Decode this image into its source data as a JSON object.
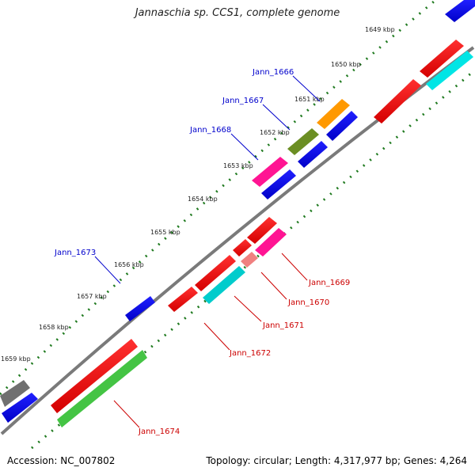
{
  "header": {
    "title": "Jannaschia sp. CCS1, complete genome"
  },
  "footer": {
    "accession": "Accession: NC_007802",
    "summary": "Topology: circular; Length: 4,317,977 bp; Genes: 4,264"
  },
  "colors": {
    "backbone": "#7a7a7a",
    "tick": "#1f7a1f",
    "forward_label": "#0000cc",
    "reverse_label": "#cc0000"
  },
  "kbp_ticks": [
    "1649 kbp",
    "1650 kbp",
    "1651 kbp",
    "1652 kbp",
    "1653 kbp",
    "1654 kbp",
    "1655 kbp",
    "1656 kbp",
    "1657 kbp",
    "1658 kbp",
    "1659 kbp"
  ],
  "gene_labels": {
    "forward": [
      "Jann_1666",
      "Jann_1667",
      "Jann_1668",
      "Jann_1673"
    ],
    "reverse": [
      "Jann_1669",
      "Jann_1670",
      "Jann_1671",
      "Jann_1672",
      "Jann_1674"
    ]
  }
}
